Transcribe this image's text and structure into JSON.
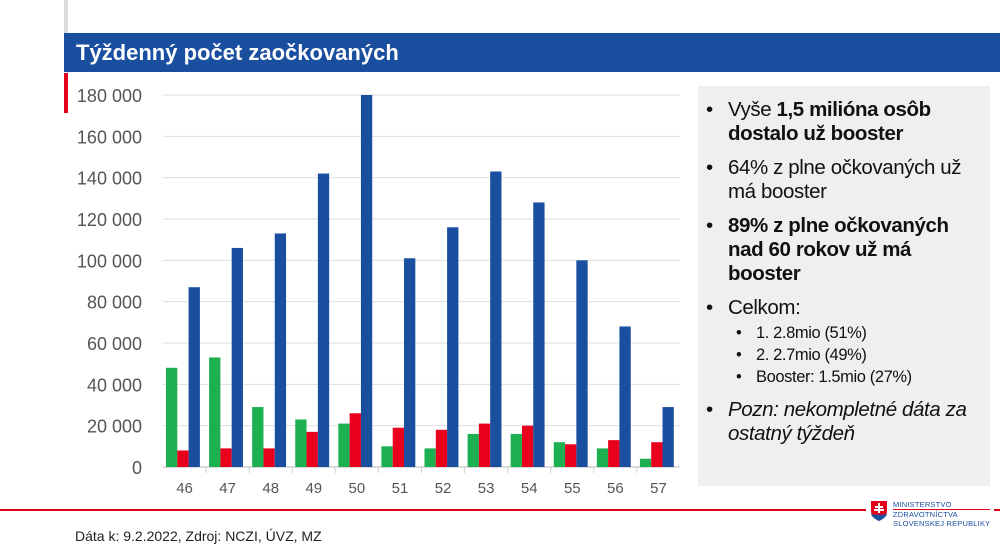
{
  "header": {
    "title": "Týždenný počet zaočkovaných"
  },
  "chart_data": {
    "type": "bar",
    "title": "",
    "xlabel": "",
    "ylabel": "",
    "categories": [
      "46",
      "47",
      "48",
      "49",
      "50",
      "51",
      "52",
      "53",
      "54",
      "55",
      "56",
      "57"
    ],
    "series": [
      {
        "color": "#1db050",
        "values": [
          48000,
          53000,
          29000,
          23000,
          21000,
          10000,
          9000,
          16000,
          16000,
          12000,
          9000,
          4000
        ]
      },
      {
        "color": "#e8001c",
        "values": [
          8000,
          9000,
          9000,
          17000,
          26000,
          19000,
          18000,
          21000,
          20000,
          11000,
          13000,
          12000
        ]
      },
      {
        "color": "#1a4fa0",
        "values": [
          87000,
          106000,
          113000,
          142000,
          180000,
          101000,
          116000,
          143000,
          128000,
          100000,
          68000,
          29000
        ]
      }
    ],
    "ylim": [
      0,
      180000
    ],
    "yticks": [
      "0",
      "20 000",
      "40 000",
      "60 000",
      "80 000",
      "100 000",
      "120 000",
      "140 000",
      "160 000",
      "180 000"
    ],
    "grid": true,
    "legend": "none"
  },
  "panel": {
    "b1_normal": "Vyše ",
    "b1_bold": "1,5 milióna osôb dostalo už booster",
    "b2": "64% z plne očkovaných už má booster",
    "b3": "89% z plne očkovaných nad 60 rokov už má booster",
    "b4": "Celkom:",
    "sub": [
      "1. 2.8mio (51%)",
      "2. 2.7mio (49%)",
      "Booster: 1.5mio (27%)"
    ],
    "b5": "Pozn: nekompletné dáta za ostatný týždeň"
  },
  "footer": {
    "source": "Dáta k: 9.2.2022, Zdroj: NCZI, ÚVZ, MZ",
    "logo_lines": [
      "MINISTERSTVO",
      "ZDRAVOTNÍCTVA",
      "SLOVENSKEJ REPUBLIKY"
    ]
  }
}
